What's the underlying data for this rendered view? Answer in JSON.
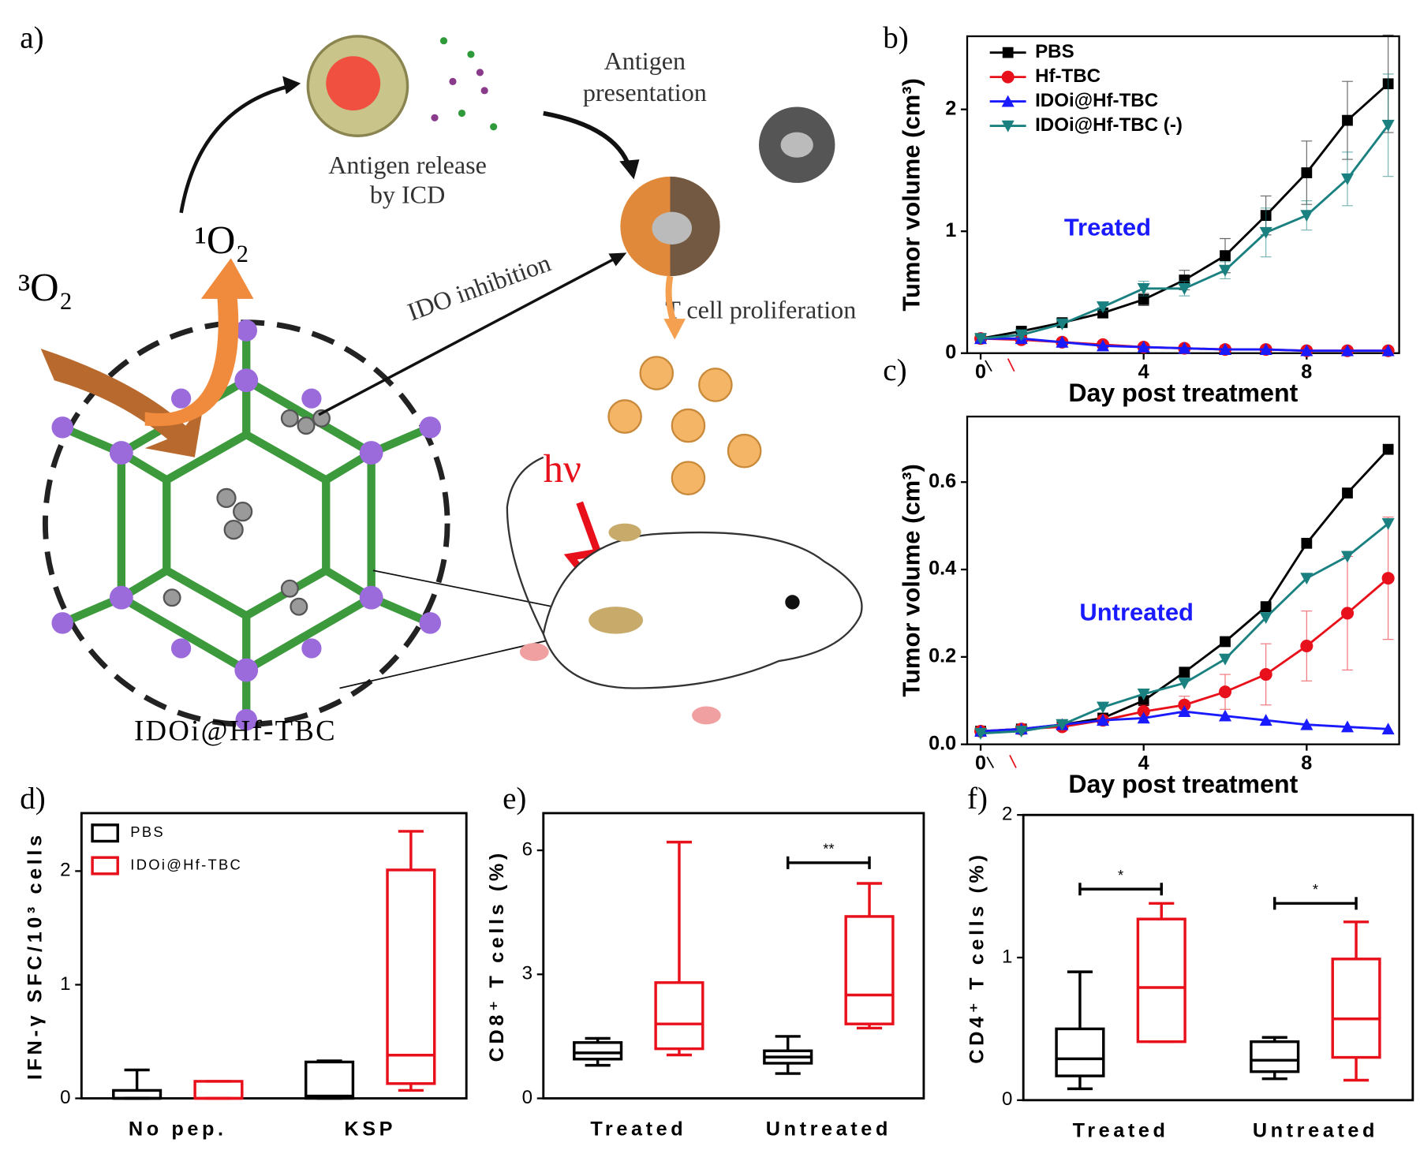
{
  "panel_labels": [
    "a)",
    "b)",
    "c)",
    "d)",
    "e)",
    "f)"
  ],
  "diagram": {
    "antigen_release": [
      "Antigen release",
      "by ICD"
    ],
    "antigen_presentation": [
      "Antigen",
      "presentation"
    ],
    "ido_inhibition": "IDO inhibition",
    "t_cell": "T cell proliferation",
    "singlet_oxygen": "¹O₂",
    "triplet_oxygen": "³O₂",
    "light": "hν",
    "mof": "IDOi@Hf-TBC"
  },
  "chart_data": [
    {
      "type": "line",
      "ylabel": "Tumor volume (cm³)",
      "xlabel": "Day post treatment",
      "annotation": "Treated",
      "legend": "upper left",
      "x": [
        0,
        1,
        2,
        3,
        4,
        5,
        6,
        7,
        8,
        9,
        10
      ],
      "xlim": [
        -0.33,
        10.27
      ],
      "xticks": [
        0,
        4,
        8
      ],
      "ylim": [
        0,
        2.6
      ],
      "yticks": [
        0,
        1,
        2
      ],
      "series": [
        {
          "name": "PBS",
          "color": "#000000",
          "marker": "square",
          "values": [
            0.12,
            0.18,
            0.25,
            0.33,
            0.44,
            0.6,
            0.8,
            1.13,
            1.48,
            1.91,
            2.21
          ],
          "errors": [
            0.02,
            0.03,
            0.03,
            0.04,
            0.05,
            0.08,
            0.14,
            0.16,
            0.26,
            0.32,
            0.4
          ]
        },
        {
          "name": "Hf-TBC",
          "color": "#e8101a",
          "marker": "circle",
          "values": [
            0.12,
            0.11,
            0.09,
            0.07,
            0.05,
            0.04,
            0.03,
            0.03,
            0.02,
            0.02,
            0.02
          ]
        },
        {
          "name": "IDOi@Hf-TBC",
          "color": "#1a1aff",
          "marker": "triangle",
          "values": [
            0.12,
            0.12,
            0.09,
            0.06,
            0.05,
            0.04,
            0.03,
            0.03,
            0.02,
            0.02,
            0.02
          ]
        },
        {
          "name": "IDOi@Hf-TBC (-)",
          "color": "#1a8080",
          "marker": "triangle-down",
          "values": [
            0.12,
            0.15,
            0.24,
            0.38,
            0.53,
            0.53,
            0.68,
            0.99,
            1.13,
            1.43,
            1.87
          ],
          "errors": [
            0.02,
            0.03,
            0.03,
            0.03,
            0.06,
            0.06,
            0.07,
            0.2,
            0.12,
            0.22,
            0.42
          ]
        }
      ]
    },
    {
      "type": "line",
      "ylabel": "Tumor volume (cm³)",
      "xlabel": "Day post treatment",
      "annotation": "Untreated",
      "x": [
        0,
        1,
        2,
        3,
        4,
        5,
        6,
        7,
        8,
        9,
        10
      ],
      "xlim": [
        -0.33,
        10.27
      ],
      "xticks": [
        0,
        4,
        8
      ],
      "ylim": [
        0,
        0.75
      ],
      "yticks": [
        {
          "value": 0,
          "label": "0.0"
        },
        0.2,
        0.4,
        0.6
      ],
      "series": [
        {
          "color": "#000000",
          "marker": "square",
          "values": [
            0.03,
            0.035,
            0.045,
            0.06,
            0.1,
            0.165,
            0.235,
            0.315,
            0.46,
            0.575,
            0.675
          ]
        },
        {
          "color": "#e8101a",
          "marker": "circle",
          "values": [
            0.03,
            0.035,
            0.04,
            0.055,
            0.075,
            0.09,
            0.12,
            0.16,
            0.225,
            0.3,
            0.38
          ],
          "errors": [
            0.005,
            0.005,
            0.005,
            0.01,
            0.015,
            0.02,
            0.04,
            0.07,
            0.08,
            0.13,
            0.14
          ]
        },
        {
          "color": "#1a1aff",
          "marker": "triangle",
          "values": [
            0.03,
            0.035,
            0.045,
            0.055,
            0.06,
            0.075,
            0.065,
            0.055,
            0.045,
            0.04,
            0.035
          ]
        },
        {
          "color": "#1a8080",
          "marker": "triangle-down",
          "values": [
            0.025,
            0.03,
            0.045,
            0.085,
            0.115,
            0.14,
            0.195,
            0.29,
            0.38,
            0.43,
            0.505
          ]
        }
      ]
    },
    {
      "type": "box",
      "ylabel": "IFN-γ SFC/10³ cells",
      "legend": "upper left",
      "categories": [
        "No pep.",
        "KSP"
      ],
      "ylim": [
        0,
        2.51
      ],
      "yticks": [
        0,
        1,
        2
      ],
      "series": [
        {
          "name": "PBS",
          "color": "#000000",
          "boxes": [
            [
              0,
              0,
              0,
              0.07,
              0.25
            ],
            [
              0,
              0,
              0.02,
              0.32,
              0.33
            ]
          ]
        },
        {
          "name": "IDOi@Hf-TBC",
          "color": "#e8101a",
          "boxes": [
            [
              0,
              0,
              0,
              0.15,
              0.15
            ],
            [
              0.07,
              0.13,
              0.38,
              2.01,
              2.35
            ]
          ]
        }
      ]
    },
    {
      "type": "box",
      "ylabel": "CD8⁺ T cells (%)",
      "categories": [
        "Treated",
        "Untreated"
      ],
      "ylim": [
        0,
        6.9
      ],
      "yticks": [
        0,
        3,
        6
      ],
      "series": [
        {
          "color": "#000000",
          "boxes": [
            [
              0.8,
              0.95,
              1.1,
              1.35,
              1.45
            ],
            [
              0.6,
              0.85,
              1.0,
              1.15,
              1.5
            ]
          ]
        },
        {
          "color": "#e8101a",
          "boxes": [
            [
              1.05,
              1.2,
              1.8,
              2.8,
              6.2
            ],
            [
              1.7,
              1.8,
              2.5,
              4.4,
              5.2
            ]
          ]
        }
      ],
      "annotations": [
        {
          "label": "**",
          "category": "Untreated",
          "value": 5.7
        }
      ]
    },
    {
      "type": "box",
      "ylabel": "CD4⁺ T cells (%)",
      "categories": [
        "Treated",
        "Untreated"
      ],
      "ylim": [
        0,
        2
      ],
      "yticks": [
        0,
        1,
        2
      ],
      "series": [
        {
          "color": "#000000",
          "boxes": [
            [
              0.08,
              0.17,
              0.29,
              0.5,
              0.9
            ],
            [
              0.15,
              0.2,
              0.28,
              0.41,
              0.44
            ]
          ]
        },
        {
          "color": "#e8101a",
          "boxes": [
            [
              0.41,
              0.41,
              0.79,
              1.27,
              1.38
            ],
            [
              0.14,
              0.3,
              0.57,
              0.99,
              1.25
            ]
          ]
        }
      ],
      "annotations": [
        {
          "label": "*",
          "category": "Treated",
          "value": 1.48
        },
        {
          "label": "*",
          "category": "Untreated",
          "value": 1.38
        }
      ]
    }
  ]
}
